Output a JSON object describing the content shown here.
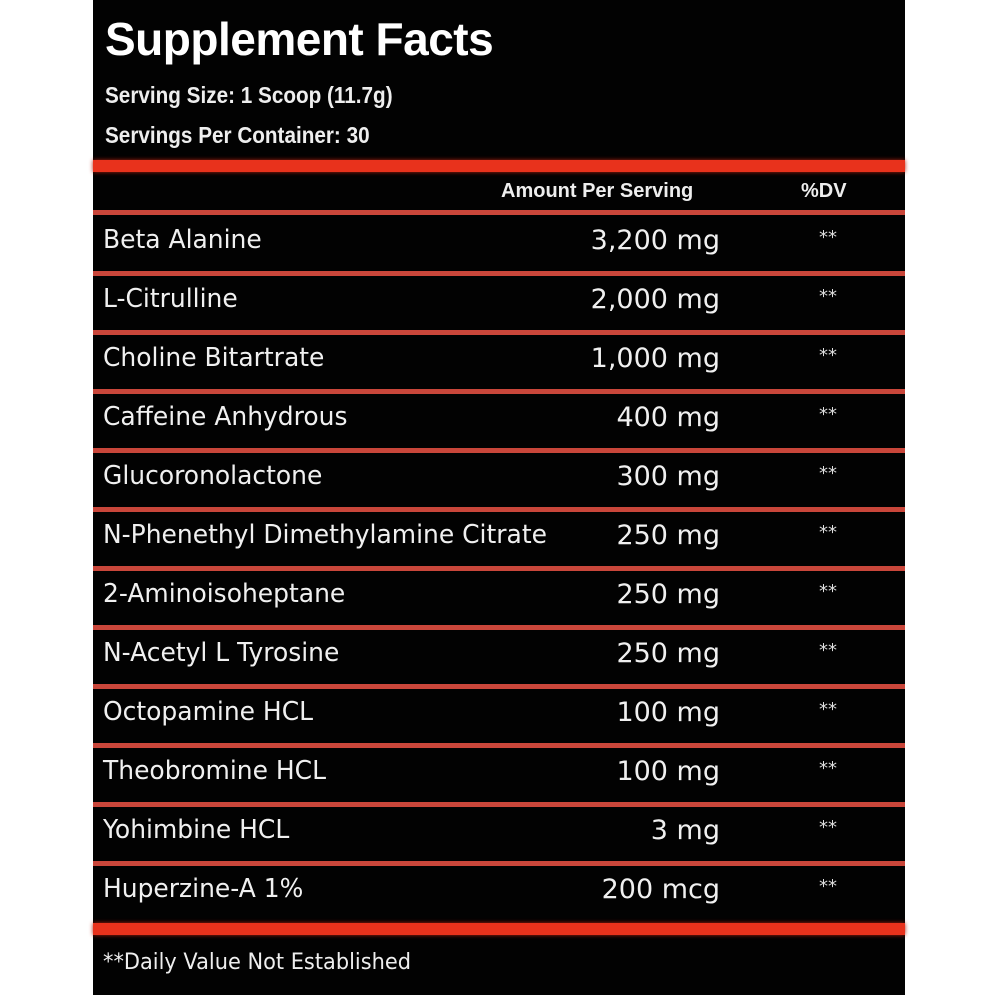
{
  "title": "Supplement Facts",
  "serving_size": "Serving Size: 1 Scoop (11.7g)",
  "servings_per_container": "Servings Per Container: 30",
  "headers": {
    "amount": "Amount Per Serving",
    "dv": "%DV"
  },
  "rows": [
    {
      "name": "Beta Alanine",
      "amount": "3,200 mg",
      "dv": "**"
    },
    {
      "name": "L-Citrulline",
      "amount": "2,000 mg",
      "dv": "**"
    },
    {
      "name": "Choline Bitartrate",
      "amount": "1,000 mg",
      "dv": "**"
    },
    {
      "name": "Caffeine Anhydrous",
      "amount": "400 mg",
      "dv": "**"
    },
    {
      "name": "Glucoronolactone",
      "amount": "300 mg",
      "dv": "**"
    },
    {
      "name": "N-Phenethyl Dimethylamine Citrate",
      "amount": "250 mg",
      "dv": "**"
    },
    {
      "name": "2-Aminoisoheptane",
      "amount": "250 mg",
      "dv": "**"
    },
    {
      "name": "N-Acetyl L Tyrosine",
      "amount": "250 mg",
      "dv": "**"
    },
    {
      "name": "Octopamine HCL",
      "amount": "100 mg",
      "dv": "**"
    },
    {
      "name": "Theobromine HCL",
      "amount": "100 mg",
      "dv": "**"
    },
    {
      "name": "Yohimbine HCL",
      "amount": "3 mg",
      "dv": "**"
    },
    {
      "name": "Huperzine-A 1%",
      "amount": "200 mcg",
      "dv": "**"
    }
  ],
  "footnote": "**Daily Value Not Established",
  "colors": {
    "background": "#020202",
    "rule": "#e8321c",
    "text": "#f2f2f2"
  }
}
